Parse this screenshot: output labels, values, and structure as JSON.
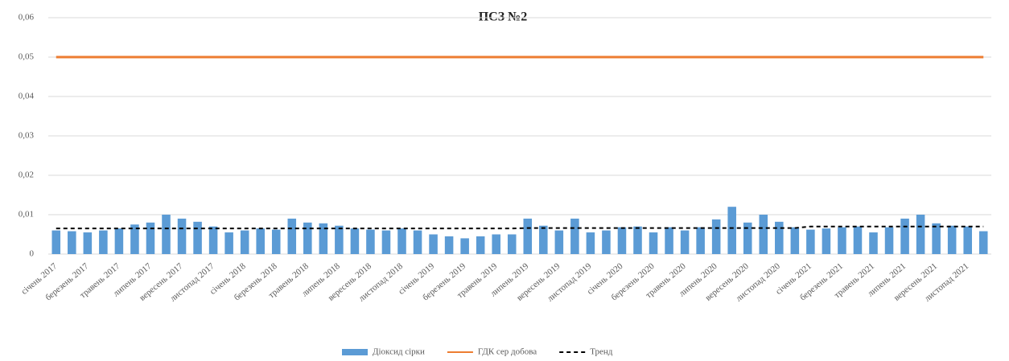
{
  "chart_data": {
    "type": "bar",
    "title": "ПСЗ №2",
    "categories": [
      "січень 2017",
      null,
      "березень 2017",
      null,
      "травень 2017",
      null,
      "липень 2017",
      null,
      "вересень 2017",
      null,
      "листопад 2017",
      null,
      "січень 2018",
      null,
      "березень 2018",
      null,
      "травень 2018",
      null,
      "липень 2018",
      null,
      "вересень 2018",
      null,
      "листопад 2018",
      null,
      "січень 2019",
      null,
      "березень 2019",
      null,
      "травень 2019",
      null,
      "липень 2019",
      null,
      "вересень 2019",
      null,
      "листопад 2019",
      null,
      "січень 2020",
      null,
      "березень 2020",
      null,
      "травень 2020",
      null,
      "липень 2020",
      null,
      "вересень 2020",
      null,
      "листопад 2020",
      null,
      "січень 2021",
      null,
      "березень 2021",
      null,
      "травень 2021",
      null,
      "липень 2021",
      null,
      "вересень 2021",
      null,
      "листопад 2021",
      null
    ],
    "series": [
      {
        "name": "Діоксид сірки",
        "type": "bar",
        "color": "#5b9bd5",
        "values": [
          0.006,
          0.0058,
          0.0055,
          0.006,
          0.0065,
          0.0075,
          0.008,
          0.01,
          0.009,
          0.0082,
          0.007,
          0.0055,
          0.006,
          0.0065,
          0.0062,
          0.009,
          0.008,
          0.0078,
          0.0072,
          0.0065,
          0.0062,
          0.006,
          0.0065,
          0.006,
          0.005,
          0.0045,
          0.004,
          0.0045,
          0.005,
          0.005,
          0.009,
          0.0072,
          0.006,
          0.009,
          0.0055,
          0.006,
          0.0068,
          0.007,
          0.0055,
          0.0068,
          0.006,
          0.0068,
          0.0088,
          0.012,
          0.008,
          0.01,
          0.0082,
          0.0068,
          0.0062,
          0.0065,
          0.0068,
          0.007,
          0.0055,
          0.0068,
          0.009,
          0.01,
          0.0078,
          0.0072,
          0.007,
          0.0058
        ]
      },
      {
        "name": "ГДК сер добова",
        "type": "line",
        "color": "#ed7d31",
        "values": [
          0.05,
          0.05,
          0.05,
          0.05,
          0.05,
          0.05,
          0.05,
          0.05,
          0.05,
          0.05,
          0.05,
          0.05,
          0.05,
          0.05,
          0.05,
          0.05,
          0.05,
          0.05,
          0.05,
          0.05,
          0.05,
          0.05,
          0.05,
          0.05,
          0.05,
          0.05,
          0.05,
          0.05,
          0.05,
          0.05,
          0.05,
          0.05,
          0.05,
          0.05,
          0.05,
          0.05,
          0.05,
          0.05,
          0.05,
          0.05,
          0.05,
          0.05,
          0.05,
          0.05,
          0.05,
          0.05,
          0.05,
          0.05,
          0.05,
          0.05,
          0.05,
          0.05,
          0.05,
          0.05,
          0.05,
          0.05,
          0.05,
          0.05,
          0.05,
          0.05
        ]
      },
      {
        "name": "Тренд",
        "type": "line",
        "dashed": true,
        "color": "#000000",
        "values": [
          0.0065,
          0.0065,
          0.0065,
          0.0065,
          0.0065,
          0.0065,
          0.0065,
          0.0065,
          0.0065,
          0.0065,
          0.0065,
          0.0065,
          0.0065,
          0.0065,
          0.0065,
          0.0065,
          0.0065,
          0.0065,
          0.0065,
          0.0065,
          0.0065,
          0.0065,
          0.0065,
          0.0065,
          0.0065,
          0.0065,
          0.0065,
          0.0065,
          0.0065,
          0.0065,
          0.0066,
          0.0066,
          0.0066,
          0.0066,
          0.0066,
          0.0066,
          0.0066,
          0.0066,
          0.0066,
          0.0066,
          0.0066,
          0.0066,
          0.0066,
          0.0066,
          0.0066,
          0.0066,
          0.0066,
          0.0066,
          0.007,
          0.007,
          0.007,
          0.007,
          0.007,
          0.007,
          0.007,
          0.007,
          0.007,
          0.007,
          0.007,
          0.007
        ]
      }
    ],
    "ylim": [
      0,
      0.06
    ],
    "yticks": [
      0,
      {
        "value": 0.01,
        "label": "0,01"
      },
      {
        "value": 0.02,
        "label": "0,02"
      },
      {
        "value": 0.03,
        "label": "0,03"
      },
      {
        "value": 0.04,
        "label": "0,04"
      },
      {
        "value": 0.05,
        "label": "0,05"
      },
      {
        "value": 0.06,
        "label": "0,06"
      }
    ],
    "grid": true,
    "legend": "bottom"
  }
}
